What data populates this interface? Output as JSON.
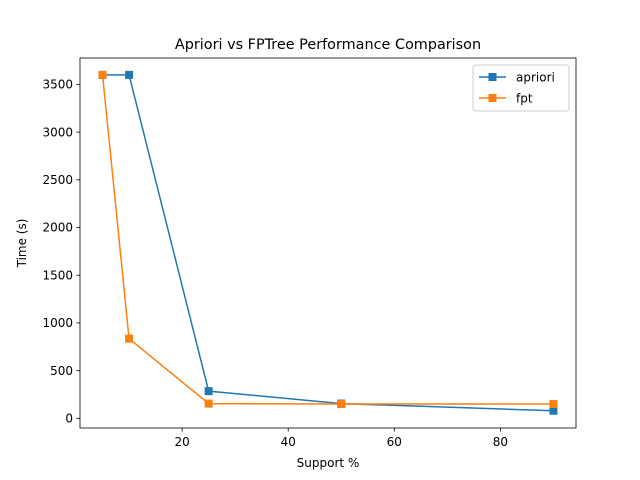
{
  "chart_data": {
    "type": "line",
    "title": "Apriori vs FPTree Performance Comparison",
    "xlabel": "Support %",
    "ylabel": "Time (s)",
    "xlim": [
      0.75,
      94.25
    ],
    "ylim": [
      -101,
      3777
    ],
    "xticks": [
      20,
      40,
      60,
      80
    ],
    "yticks": [
      0,
      500,
      1000,
      1500,
      2000,
      2500,
      3000,
      3500
    ],
    "legend_position": "top-right",
    "grid": false,
    "series": [
      {
        "name": "apriori",
        "color": "#1f77b4",
        "marker": "square",
        "x": [
          5,
          10,
          25,
          50,
          90
        ],
        "y": [
          3600,
          3600,
          285,
          155,
          80
        ]
      },
      {
        "name": "fpt",
        "color": "#ff7f0e",
        "marker": "square",
        "x": [
          5,
          10,
          25,
          50,
          90
        ],
        "y": [
          3600,
          835,
          155,
          150,
          150
        ]
      }
    ]
  }
}
